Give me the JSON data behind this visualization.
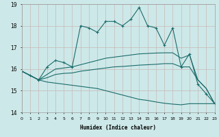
{
  "xlabel": "Humidex (Indice chaleur)",
  "x": [
    0,
    1,
    2,
    3,
    4,
    5,
    6,
    7,
    8,
    9,
    10,
    11,
    12,
    13,
    14,
    15,
    16,
    17,
    18,
    19,
    20,
    21,
    22,
    23
  ],
  "line_main": [
    15.9,
    15.7,
    15.5,
    16.1,
    16.4,
    16.3,
    16.1,
    18.0,
    17.9,
    17.7,
    18.2,
    18.2,
    18.0,
    18.3,
    18.85,
    18.0,
    17.9,
    17.1,
    17.9,
    16.1,
    16.7,
    15.3,
    14.85,
    14.4
  ],
  "line_upper": [
    15.9,
    15.7,
    15.5,
    15.75,
    16.0,
    16.05,
    16.1,
    16.2,
    16.3,
    16.4,
    16.5,
    16.55,
    16.6,
    16.65,
    16.7,
    16.72,
    16.74,
    16.75,
    16.75,
    16.5,
    16.65,
    15.5,
    15.1,
    14.4
  ],
  "line_mid": [
    15.9,
    15.7,
    15.5,
    15.6,
    15.75,
    15.8,
    15.82,
    15.9,
    15.95,
    16.0,
    16.05,
    16.1,
    16.12,
    16.15,
    16.18,
    16.2,
    16.22,
    16.25,
    16.25,
    16.1,
    16.1,
    15.5,
    15.1,
    14.4
  ],
  "line_lower": [
    15.9,
    15.7,
    15.5,
    15.4,
    15.35,
    15.3,
    15.25,
    15.2,
    15.15,
    15.1,
    15.0,
    14.9,
    14.8,
    14.7,
    14.6,
    14.55,
    14.48,
    14.42,
    14.38,
    14.35,
    14.4,
    14.4,
    14.4,
    14.4
  ],
  "bg_color": "#cde8e8",
  "grid_color": "#c8b8b8",
  "line_color": "#1a6b6b",
  "ylim": [
    14,
    19
  ],
  "yticks": [
    14,
    15,
    16,
    17,
    18,
    19
  ],
  "xticks": [
    0,
    1,
    2,
    3,
    4,
    5,
    6,
    7,
    8,
    9,
    10,
    11,
    12,
    13,
    14,
    15,
    16,
    17,
    18,
    19,
    20,
    21,
    22,
    23
  ]
}
